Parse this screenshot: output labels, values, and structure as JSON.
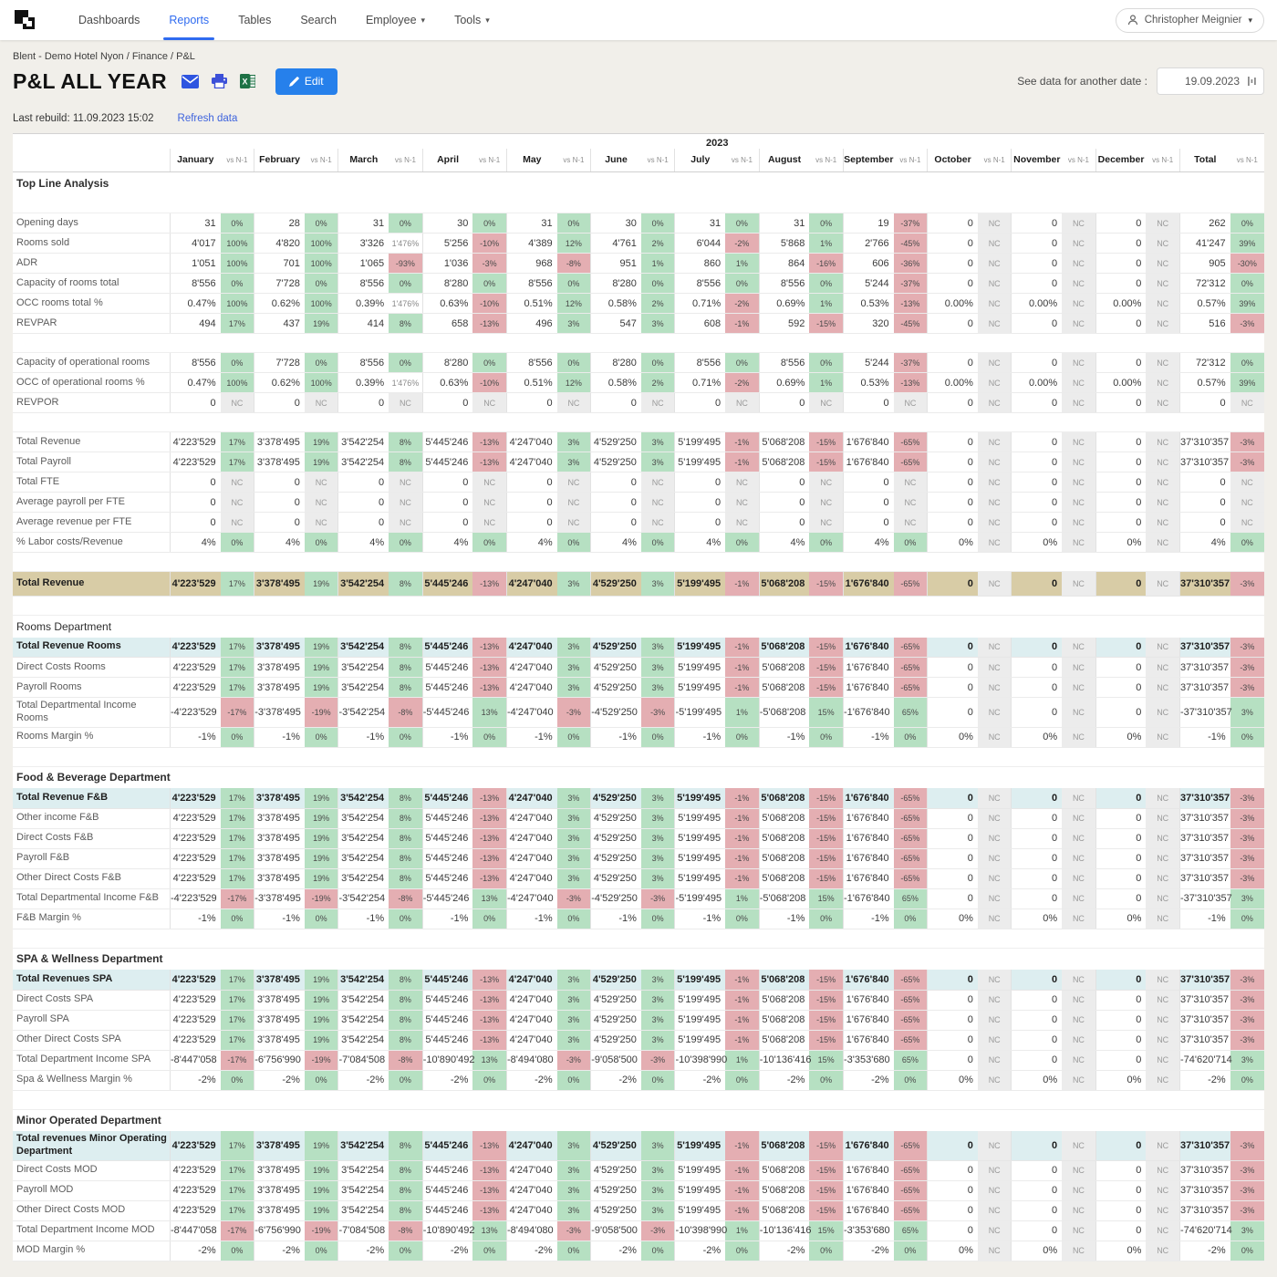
{
  "nav": {
    "items": [
      {
        "label": "Dashboards",
        "active": false,
        "dropdown": false
      },
      {
        "label": "Reports",
        "active": true,
        "dropdown": false
      },
      {
        "label": "Tables",
        "active": false,
        "dropdown": false
      },
      {
        "label": "Search",
        "active": false,
        "dropdown": false
      },
      {
        "label": "Employee",
        "active": false,
        "dropdown": true
      },
      {
        "label": "Tools",
        "active": false,
        "dropdown": true
      }
    ],
    "user": "Christopher Meignier"
  },
  "header": {
    "breadcrumb": "Blent - Demo Hotel Nyon / Finance / P&L",
    "title": "P&L ALL YEAR",
    "icons": [
      "mail-icon",
      "print-icon",
      "excel-icon"
    ],
    "edit_label": "Edit",
    "date_label": "See data for another date :",
    "date_value": "19.09.2023",
    "last_rebuild": "Last rebuild: 11.09.2023 15:02",
    "refresh_label": "Refresh data"
  },
  "colors": {
    "accent_blue": "#2f6bf0",
    "badge_positive": "#b6e0c2",
    "badge_negative": "#e4aeb2",
    "badge_nc_bg": "#ececec",
    "band_tan": "#d8cca6",
    "highlight_blue": "#ddeef0",
    "excel_green": "#1e7145",
    "page_bg": "#f1efea"
  },
  "table": {
    "year": "2023",
    "vs_header": "vs N-1",
    "months": [
      "January",
      "February",
      "March",
      "April",
      "May",
      "June",
      "July",
      "August",
      "September",
      "October",
      "November",
      "December",
      "Total"
    ],
    "patterns": {
      "money": {
        "values": [
          "4'223'529",
          "3'378'495",
          "3'542'254",
          "5'445'246",
          "4'247'040",
          "4'529'250",
          "5'199'495",
          "5'068'208",
          "1'676'840",
          "0",
          "0",
          "0",
          "37'310'357"
        ],
        "vs": [
          "17%",
          "19%",
          "8%",
          "-13%",
          "3%",
          "3%",
          "-1%",
          "-15%",
          "-65%",
          "NC",
          "NC",
          "NC",
          "-3%"
        ]
      },
      "negMoney": {
        "values": [
          "-4'223'529",
          "-3'378'495",
          "-3'542'254",
          "-5'445'246",
          "-4'247'040",
          "-4'529'250",
          "-5'199'495",
          "-5'068'208",
          "-1'676'840",
          "0",
          "0",
          "0",
          "-37'310'357"
        ],
        "vs": [
          "-17%",
          "-19%",
          "-8%",
          "13%",
          "-3%",
          "-3%",
          "1%",
          "15%",
          "65%",
          "NC",
          "NC",
          "NC",
          "3%"
        ]
      },
      "bigNeg": {
        "values": [
          "-8'447'058",
          "-6'756'990",
          "-7'084'508",
          "-10'890'492",
          "-8'494'080",
          "-9'058'500",
          "-10'398'990",
          "-10'136'416",
          "-3'353'680",
          "0",
          "0",
          "0",
          "-74'620'714"
        ],
        "vs": [
          "-17%",
          "-19%",
          "-8%",
          "13%",
          "-3%",
          "-3%",
          "1%",
          "15%",
          "65%",
          "NC",
          "NC",
          "NC",
          "3%"
        ]
      },
      "margin1": {
        "values": [
          "-1%",
          "-1%",
          "-1%",
          "-1%",
          "-1%",
          "-1%",
          "-1%",
          "-1%",
          "-1%",
          "0%",
          "0%",
          "0%",
          "-1%"
        ],
        "vs": [
          "0%",
          "0%",
          "0%",
          "0%",
          "0%",
          "0%",
          "0%",
          "0%",
          "0%",
          "NC",
          "NC",
          "NC",
          "0%"
        ]
      },
      "margin2": {
        "values": [
          "-2%",
          "-2%",
          "-2%",
          "-2%",
          "-2%",
          "-2%",
          "-2%",
          "-2%",
          "-2%",
          "0%",
          "0%",
          "0%",
          "-2%"
        ],
        "vs": [
          "0%",
          "0%",
          "0%",
          "0%",
          "0%",
          "0%",
          "0%",
          "0%",
          "0%",
          "NC",
          "NC",
          "NC",
          "0%"
        ]
      },
      "zero": {
        "values": [
          "0",
          "0",
          "0",
          "0",
          "0",
          "0",
          "0",
          "0",
          "0",
          "0",
          "0",
          "0",
          "0"
        ],
        "vs": [
          "NC",
          "NC",
          "NC",
          "NC",
          "NC",
          "NC",
          "NC",
          "NC",
          "NC",
          "NC",
          "NC",
          "NC",
          "NC"
        ]
      },
      "labor": {
        "values": [
          "4%",
          "4%",
          "4%",
          "4%",
          "4%",
          "4%",
          "4%",
          "4%",
          "4%",
          "0%",
          "0%",
          "0%",
          "4%"
        ],
        "vs": [
          "0%",
          "0%",
          "0%",
          "0%",
          "0%",
          "0%",
          "0%",
          "0%",
          "0%",
          "NC",
          "NC",
          "NC",
          "0%"
        ]
      },
      "capacity": {
        "values": [
          "8'556",
          "7'728",
          "8'556",
          "8'280",
          "8'556",
          "8'280",
          "8'556",
          "8'556",
          "5'244",
          "0",
          "0",
          "0",
          "72'312"
        ],
        "vs": [
          "0%",
          "0%",
          "0%",
          "0%",
          "0%",
          "0%",
          "0%",
          "0%",
          "-37%",
          "NC",
          "NC",
          "NC",
          "0%"
        ]
      },
      "occ": {
        "values": [
          "0.47%",
          "0.62%",
          "0.39%",
          "0.63%",
          "0.51%",
          "0.58%",
          "0.71%",
          "0.69%",
          "0.53%",
          "0.00%",
          "0.00%",
          "0.00%",
          "0.57%"
        ],
        "vs": [
          "100%",
          "100%",
          "1'476%",
          "-10%",
          "12%",
          "2%",
          "-2%",
          "1%",
          "-13%",
          "NC",
          "NC",
          "NC",
          "39%"
        ]
      }
    },
    "sections": [
      {
        "title": "Top Line Analysis",
        "bold": true,
        "rows": [
          {
            "type": "blank"
          },
          {
            "label": "Opening days",
            "values": [
              "31",
              "28",
              "31",
              "30",
              "31",
              "30",
              "31",
              "31",
              "19",
              "0",
              "0",
              "0",
              "262"
            ],
            "vs": [
              "0%",
              "0%",
              "0%",
              "0%",
              "0%",
              "0%",
              "0%",
              "0%",
              "-37%",
              "NC",
              "NC",
              "NC",
              "0%"
            ]
          },
          {
            "label": "Rooms sold",
            "values": [
              "4'017",
              "4'820",
              "3'326",
              "5'256",
              "4'389",
              "4'761",
              "6'044",
              "5'868",
              "2'766",
              "0",
              "0",
              "0",
              "41'247"
            ],
            "vs": [
              "100%",
              "100%",
              "1'476%",
              "-10%",
              "12%",
              "2%",
              "-2%",
              "1%",
              "-45%",
              "NC",
              "NC",
              "NC",
              "39%"
            ]
          },
          {
            "label": "ADR",
            "values": [
              "1'051",
              "701",
              "1'065",
              "1'036",
              "968",
              "951",
              "860",
              "864",
              "606",
              "0",
              "0",
              "0",
              "905"
            ],
            "vs": [
              "100%",
              "100%",
              "-93%",
              "-3%",
              "-8%",
              "1%",
              "1%",
              "-16%",
              "-36%",
              "NC",
              "NC",
              "NC",
              "-30%"
            ]
          },
          {
            "label": "Capacity of rooms total",
            "pattern": "capacity"
          },
          {
            "label": "OCC rooms total %",
            "pattern": "occ"
          },
          {
            "label": "REVPAR",
            "values": [
              "494",
              "437",
              "414",
              "658",
              "496",
              "547",
              "608",
              "592",
              "320",
              "0",
              "0",
              "0",
              "516"
            ],
            "vs": [
              "17%",
              "19%",
              "8%",
              "-13%",
              "3%",
              "3%",
              "-1%",
              "-15%",
              "-45%",
              "NC",
              "NC",
              "NC",
              "-3%"
            ]
          },
          {
            "type": "blank"
          },
          {
            "label": "Capacity of operational rooms",
            "pattern": "capacity"
          },
          {
            "label": "OCC of operational rooms %",
            "pattern": "occ"
          },
          {
            "label": "REVPOR",
            "pattern": "zero"
          },
          {
            "type": "blank"
          },
          {
            "label": "Total Revenue",
            "pattern": "money"
          },
          {
            "label": "Total Payroll",
            "pattern": "money"
          },
          {
            "label": "Total FTE",
            "pattern": "zero"
          },
          {
            "label": "Average payroll per FTE",
            "pattern": "zero"
          },
          {
            "label": "Average revenue per FTE",
            "pattern": "zero"
          },
          {
            "label": "% Labor costs/Revenue",
            "pattern": "labor"
          },
          {
            "type": "blank"
          },
          {
            "label": "Total Revenue",
            "type": "band",
            "pattern": "money"
          },
          {
            "type": "blank"
          }
        ]
      },
      {
        "title": "Rooms Department",
        "bold": false,
        "rows": [
          {
            "label": "Total Revenue Rooms",
            "type": "highlight",
            "pattern": "money"
          },
          {
            "label": "Direct Costs Rooms",
            "pattern": "money"
          },
          {
            "label": "Payroll Rooms",
            "pattern": "money"
          },
          {
            "label": "Total Departmental Income Rooms",
            "pattern": "negMoney"
          },
          {
            "label": "Rooms Margin %",
            "pattern": "margin1"
          },
          {
            "type": "blank"
          }
        ]
      },
      {
        "title": "Food & Beverage Department",
        "bold": true,
        "rows": [
          {
            "label": "Total Revenue F&B",
            "type": "highlight",
            "pattern": "money"
          },
          {
            "label": "Other income F&B",
            "pattern": "money"
          },
          {
            "label": "Direct Costs F&B",
            "pattern": "money"
          },
          {
            "label": "Payroll F&B",
            "pattern": "money"
          },
          {
            "label": "Other Direct Costs F&B",
            "pattern": "money"
          },
          {
            "label": "Total Departmental Income F&B",
            "pattern": "negMoney"
          },
          {
            "label": "F&B Margin %",
            "pattern": "margin1"
          },
          {
            "type": "blank"
          }
        ]
      },
      {
        "title": "SPA & Wellness Department",
        "bold": true,
        "rows": [
          {
            "label": "Total Revenues SPA",
            "type": "highlight",
            "pattern": "money"
          },
          {
            "label": "Direct Costs SPA",
            "pattern": "money"
          },
          {
            "label": "Payroll SPA",
            "pattern": "money"
          },
          {
            "label": "Other Direct Costs SPA",
            "pattern": "money"
          },
          {
            "label": "Total Department Income SPA",
            "pattern": "bigNeg"
          },
          {
            "label": "Spa & Wellness Margin %",
            "pattern": "margin2"
          },
          {
            "type": "blank"
          }
        ]
      },
      {
        "title": "Minor Operated Department",
        "bold": true,
        "rows": [
          {
            "label": "Total revenues Minor Operating Department",
            "type": "highlight",
            "pattern": "money"
          },
          {
            "label": "Direct Costs MOD",
            "pattern": "money"
          },
          {
            "label": "Payroll MOD",
            "pattern": "money"
          },
          {
            "label": "Other Direct Costs MOD",
            "pattern": "money"
          },
          {
            "label": "Total Department Income MOD",
            "pattern": "bigNeg"
          },
          {
            "label": "MOD Margin %",
            "pattern": "margin2"
          }
        ]
      }
    ]
  }
}
